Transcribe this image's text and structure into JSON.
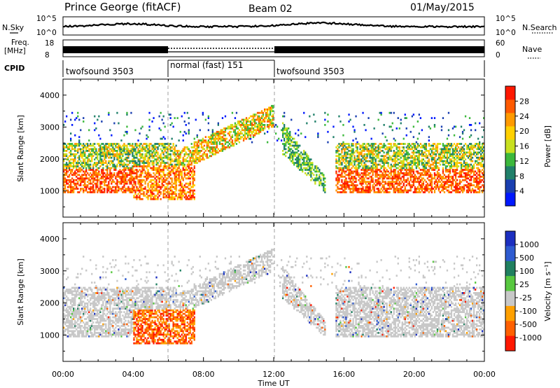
{
  "header": {
    "station": "Prince George (fitACF)",
    "beam": "Beam 02",
    "date": "01/May/2015"
  },
  "noise_panel": {
    "left_label": "N.Sky",
    "right_label": "N.Search",
    "left_ticks": [
      "10^5",
      "10^0"
    ],
    "right_ticks": [
      "10^5",
      "10^0"
    ]
  },
  "freq_panel": {
    "left_label_1": "Freq.",
    "left_label_2": "[MHz]",
    "right_label": "Nave",
    "left_ticks": [
      "18",
      "8"
    ],
    "right_ticks": [
      "60",
      "0"
    ]
  },
  "cpid_panel": {
    "label": "CPID",
    "segments": [
      {
        "name": "twofsound 3503",
        "start": 0,
        "end": 6
      },
      {
        "name": "normal (fast) 151",
        "start": 6,
        "end": 12
      },
      {
        "name": "twofsound 3503",
        "start": 12,
        "end": 24
      }
    ]
  },
  "x_axis": {
    "label": "Time UT",
    "ticks": [
      "00:00",
      "04:00",
      "08:00",
      "12:00",
      "16:00",
      "20:00",
      "00:00"
    ]
  },
  "y_axis": {
    "label": "Slant Range [km]",
    "ticks": [
      "1000",
      "2000",
      "3000",
      "4000"
    ]
  },
  "power_colorbar": {
    "label": "Power [dB]",
    "ticks": [
      "4",
      "8",
      "12",
      "16",
      "20",
      "24",
      "28"
    ],
    "colors": [
      "#0018ff",
      "#1a3fb0",
      "#20806a",
      "#3cb83c",
      "#c8e020",
      "#ffd000",
      "#ff9a00",
      "#ff5a00",
      "#ff1800"
    ]
  },
  "velocity_colorbar": {
    "label": "Velocity [m s⁻¹]",
    "ticks": [
      "1000",
      "500",
      "100",
      "25",
      "-25",
      "-100",
      "-500",
      "-1000"
    ],
    "colors": [
      "#1c2fc0",
      "#2e5bd0",
      "#208060",
      "#58c840",
      "#c8c8c8",
      "#ffa000",
      "#ff6000",
      "#ff1800"
    ]
  },
  "chart_data": [
    {
      "type": "heatmap",
      "title": "Power",
      "xlabel": "Time UT",
      "ylabel": "Slant Range [km]",
      "xlim": [
        0,
        24
      ],
      "ylim": [
        180,
        4500
      ],
      "zlabel": "Power [dB]",
      "zlim": [
        0,
        30
      ]
    },
    {
      "type": "heatmap",
      "title": "Velocity",
      "xlabel": "Time UT",
      "ylabel": "Slant Range [km]",
      "xlim": [
        0,
        24
      ],
      "ylim": [
        180,
        4500
      ],
      "zlabel": "Velocity [m s⁻¹]",
      "zlim": [
        -1000,
        1000
      ]
    }
  ]
}
